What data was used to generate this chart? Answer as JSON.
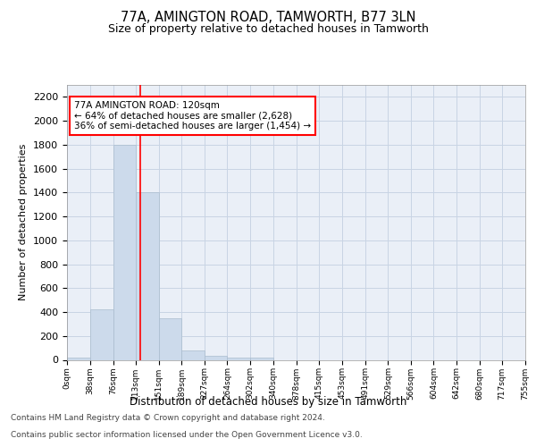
{
  "title": "77A, AMINGTON ROAD, TAMWORTH, B77 3LN",
  "subtitle": "Size of property relative to detached houses in Tamworth",
  "xlabel": "Distribution of detached houses by size in Tamworth",
  "ylabel": "Number of detached properties",
  "bar_edges": [
    0,
    38,
    76,
    113,
    151,
    189,
    227,
    264,
    302,
    340,
    378,
    415,
    453,
    491,
    529,
    566,
    604,
    642,
    680,
    717,
    755
  ],
  "bar_heights": [
    15,
    420,
    1800,
    1400,
    350,
    75,
    30,
    20,
    20,
    0,
    0,
    0,
    0,
    0,
    0,
    0,
    0,
    0,
    0,
    0
  ],
  "bar_color": "#ccdaeb",
  "bar_edge_color": "#aabcce",
  "bar_linewidth": 0.5,
  "grid_color": "#c8d4e4",
  "background_color": "#eaeff7",
  "property_line_x": 120,
  "property_line_color": "red",
  "annotation_text": "77A AMINGTON ROAD: 120sqm\n← 64% of detached houses are smaller (2,628)\n36% of semi-detached houses are larger (1,454) →",
  "annotation_box_color": "white",
  "annotation_box_edge": "red",
  "ylim": [
    0,
    2300
  ],
  "yticks": [
    0,
    200,
    400,
    600,
    800,
    1000,
    1200,
    1400,
    1600,
    1800,
    2000,
    2200
  ],
  "footer_line1": "Contains HM Land Registry data © Crown copyright and database right 2024.",
  "footer_line2": "Contains public sector information licensed under the Open Government Licence v3.0.",
  "title_fontsize": 10.5,
  "subtitle_fontsize": 9,
  "ylabel_fontsize": 8,
  "xlabel_fontsize": 8.5,
  "ytick_fontsize": 8,
  "xtick_fontsize": 6.5,
  "footer_fontsize": 6.5,
  "annotation_fontsize": 7.5
}
